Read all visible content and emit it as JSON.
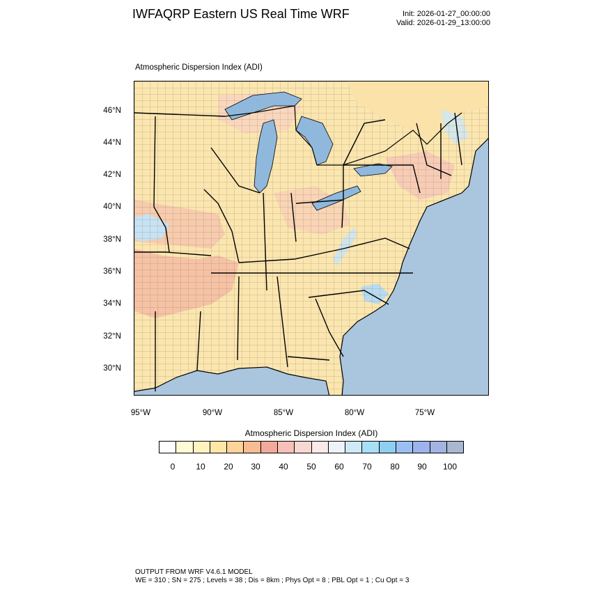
{
  "header": {
    "title": "IWFAQRP Eastern US Real Time WRF",
    "init": "Init: 2026-01-27_00:00:00",
    "valid": "Valid: 2026-01-29_13:00:00"
  },
  "map": {
    "field_label": "Atmospheric Dispersion Index   (ADI)",
    "lat_labels": [
      "46°N",
      "44°N",
      "42°N",
      "40°N",
      "38°N",
      "36°N",
      "34°N",
      "32°N",
      "30°N"
    ],
    "lon_labels": [
      "95°W",
      "90°W",
      "85°W",
      "80°W",
      "75°W"
    ],
    "colors": {
      "land_base": "#fbe6b0",
      "high_adi": "#f3b7a8",
      "low_adi": "#bfe0f2",
      "ocean": "#aac6de",
      "lake": "#8fb8dc"
    }
  },
  "colorbar": {
    "title": "Atmospheric Dispersion Index  (ADI)",
    "tick_labels": [
      "0",
      "10",
      "20",
      "30",
      "40",
      "50",
      "60",
      "70",
      "80",
      "90",
      "100"
    ],
    "swatches": [
      "#ffffff",
      "#fffbd6",
      "#fff3c0",
      "#ffe7a6",
      "#fdd39a",
      "#f7bc92",
      "#f3a99c",
      "#f6c1b8",
      "#f9d8d2",
      "#fbe8e8",
      "#eef2fb",
      "#cfe9f6",
      "#a9dff6",
      "#8ecff0",
      "#9bbff2",
      "#9cb3ec",
      "#a3b4e2",
      "#a8b8d2"
    ]
  },
  "footer": {
    "line1": "OUTPUT FROM WRF V4.6.1 MODEL",
    "line2": "WE = 310 ; SN = 275 ; Levels = 38 ; Dis = 8km ; Phys Opt = 8 ; PBL Opt = 1 ; Cu Opt = 3"
  }
}
